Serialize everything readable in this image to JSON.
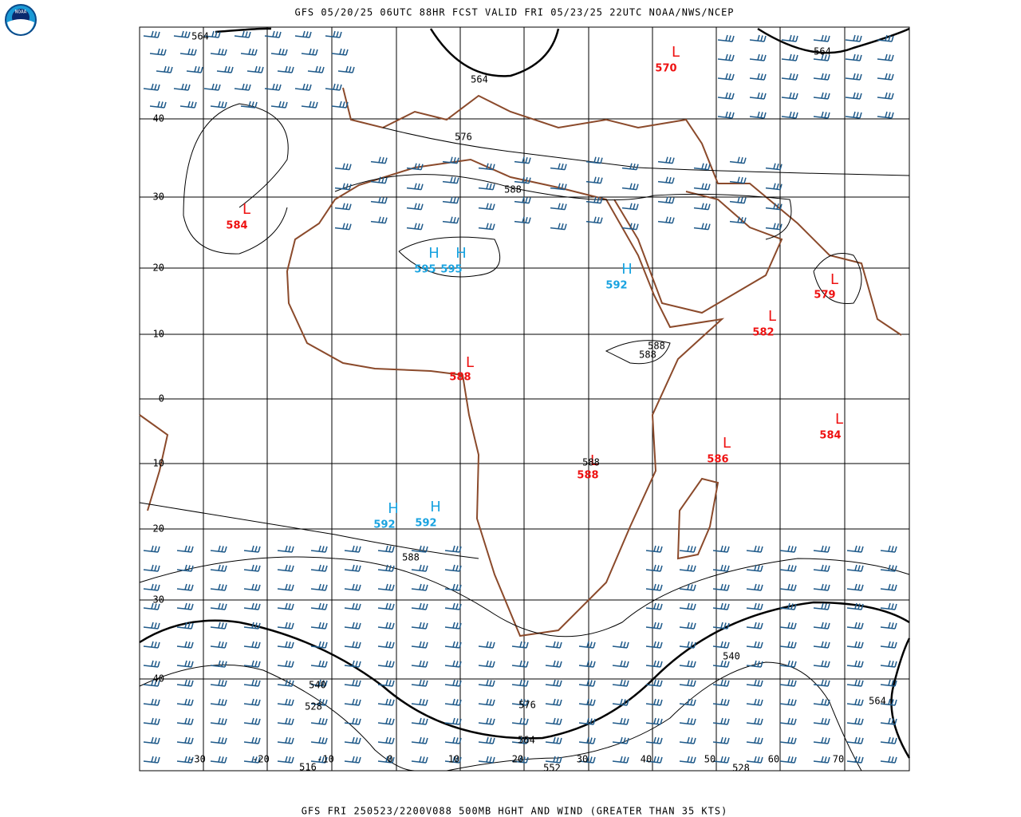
{
  "header": {
    "title": "GFS 05/20/25 06UTC 88HR FCST VALID FRI 05/23/25 22UTC NOAA/NWS/NCEP"
  },
  "footer": "GFS FRI 250523/2200V088 500MB HGHT AND WIND (GREATER THAN 35 KTS)",
  "logo": "NOAA",
  "lat_labels": [
    "40",
    "30",
    "20",
    "10",
    "0",
    "-10",
    "-20",
    "-30",
    "-40"
  ],
  "lon_labels": [
    "-30",
    "-20",
    "-10",
    "0",
    "10",
    "20",
    "30",
    "40",
    "50",
    "60",
    "70"
  ],
  "centers": [
    {
      "type": "L",
      "value": "570"
    },
    {
      "type": "L",
      "value": "584"
    },
    {
      "type": "H",
      "value": "595"
    },
    {
      "type": "H",
      "value": "595"
    },
    {
      "type": "H",
      "value": "592"
    },
    {
      "type": "L",
      "value": "579"
    },
    {
      "type": "L",
      "value": "582"
    },
    {
      "type": "L",
      "value": "588"
    },
    {
      "type": "L",
      "value": "584"
    },
    {
      "type": "L",
      "value": "586"
    },
    {
      "type": "L",
      "value": "588"
    },
    {
      "type": "H",
      "value": "592"
    },
    {
      "type": "H",
      "value": "592"
    }
  ],
  "contour_labels": [
    "564",
    "564",
    "564",
    "576",
    "588",
    "588",
    "588",
    "588",
    "588",
    "540",
    "540",
    "528",
    "576",
    "564",
    "564",
    "516",
    "552",
    "528"
  ]
}
